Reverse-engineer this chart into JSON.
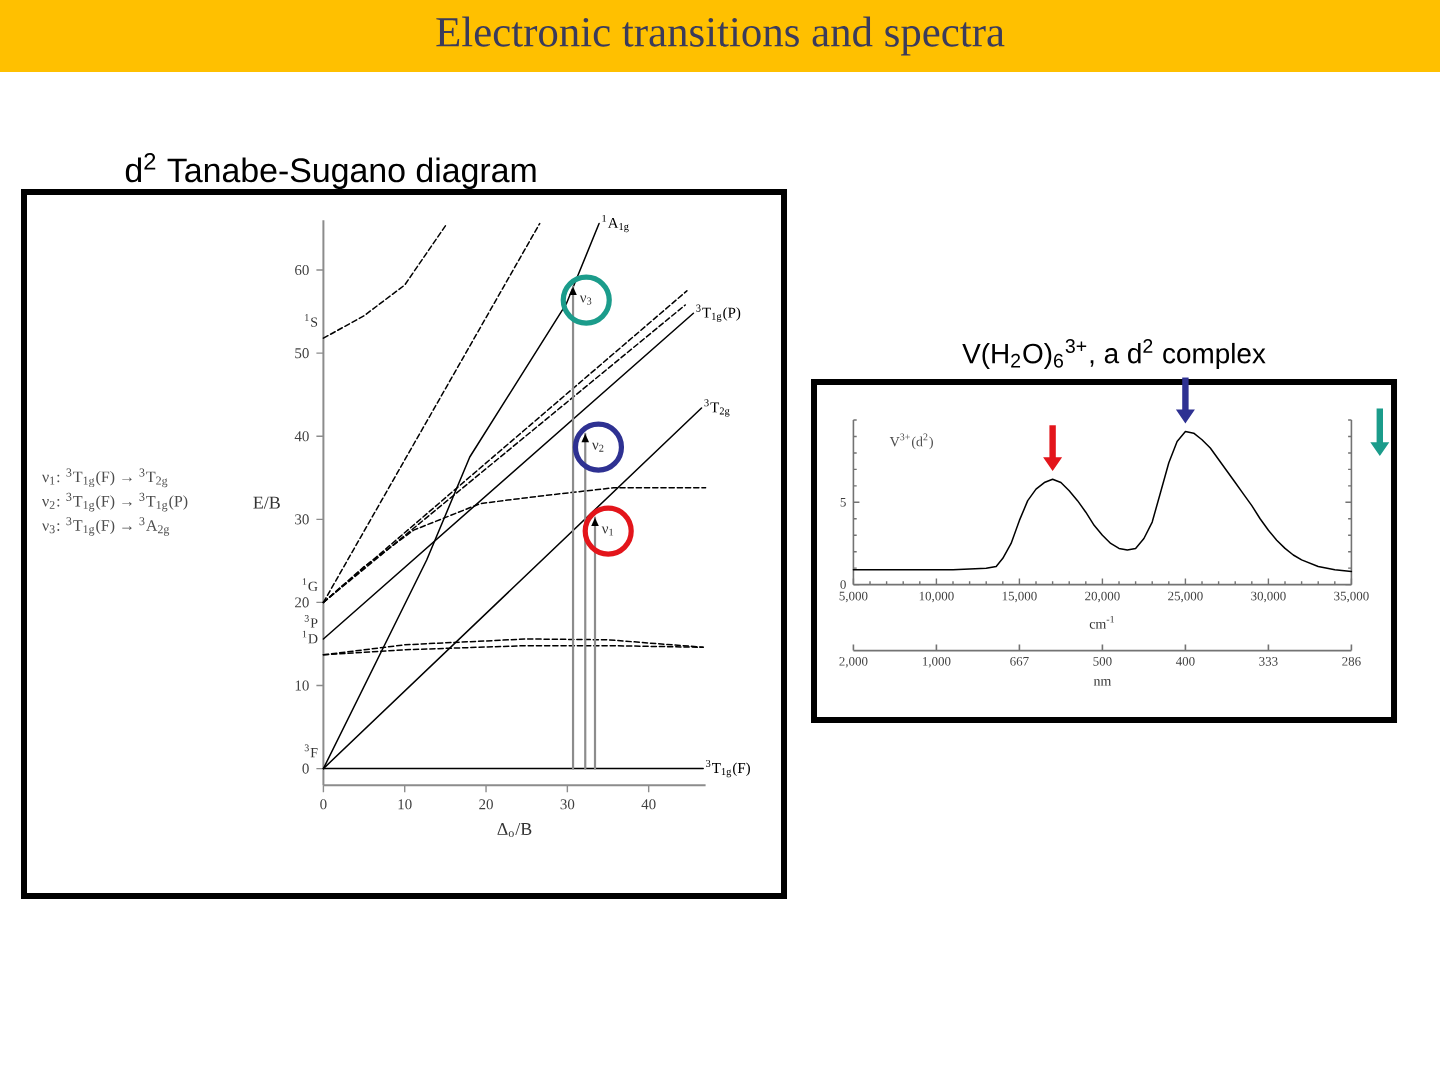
{
  "chart_data": [
    {
      "type": "line",
      "title": "Electronic transitions and spectra",
      "subtitle": "d$^{2}$ Tanabe-Sugano diagram",
      "xlabel": "Δ$_{o}$/B",
      "ylabel": "E/B",
      "xlim": [
        0,
        47
      ],
      "ylim": [
        -2,
        66
      ],
      "xticks": [
        0,
        10,
        20,
        30,
        40
      ],
      "yticks": [
        0,
        10,
        20,
        30,
        40,
        50,
        60
      ],
      "series": [
        {
          "name": "$^{3}$T$_{1g}$(F)",
          "color": "#000000",
          "line_style": "solid",
          "x": [
            0,
            46.7
          ],
          "values": [
            0,
            0
          ]
        },
        {
          "name": "$^{3}$T$_{2g}$",
          "color": "#000000",
          "line_style": "solid",
          "x": [
            0,
            46.5
          ],
          "values": [
            0,
            43.4
          ]
        },
        {
          "name": "$^{3}$T$_{1g}$(P)",
          "color": "#000000",
          "line_style": "solid",
          "x": [
            0,
            45.5
          ],
          "values": [
            15.6,
            54.8
          ]
        },
        {
          "name": "$^{1}$A$_{1g}$",
          "color": "#000000",
          "line_style": "solid",
          "x": [
            0,
            12.7,
            18,
            29.9,
            33.9
          ],
          "values": [
            0,
            25.1,
            37.5,
            56,
            65.6
          ]
        },
        {
          "color": "#000000",
          "line_style": "dashed",
          "x": [
            0,
            5,
            10,
            15.2
          ],
          "values": [
            51.8,
            54.5,
            58.2,
            65.6
          ]
        },
        {
          "color": "#000000",
          "line_style": "dashed",
          "x": [
            0,
            26.6
          ],
          "values": [
            20,
            65.6
          ]
        },
        {
          "color": "#000000",
          "line_style": "dashed",
          "x": [
            0,
            44.7
          ],
          "values": [
            20,
            57.5
          ]
        },
        {
          "color": "#000000",
          "line_style": "dashed",
          "x": [
            0,
            44.5
          ],
          "values": [
            20,
            55.8
          ]
        },
        {
          "color": "#000000",
          "line_style": "dashed",
          "x": [
            0,
            5,
            11.1,
            19.3,
            27.5,
            35.7,
            47
          ],
          "values": [
            20,
            24.3,
            28.7,
            31.9,
            32.9,
            33.8,
            33.8
          ]
        },
        {
          "color": "#000000",
          "line_style": "dashed",
          "x": [
            0,
            10,
            25,
            35,
            46.7
          ],
          "values": [
            13.7,
            14.9,
            15.6,
            15.5,
            14.6
          ]
        },
        {
          "color": "#000000",
          "line_style": "dashed",
          "x": [
            0,
            10,
            25,
            35,
            46.7
          ],
          "values": [
            13.7,
            14.3,
            14.8,
            14.8,
            14.6
          ]
        },
        {
          "color": "#8c8c8c",
          "line_style": "solid",
          "x": [
            30.7,
            30.7
          ],
          "values": [
            0,
            58
          ]
        },
        {
          "color": "#8c8c8c",
          "line_style": "solid",
          "x": [
            32.2,
            32.2
          ],
          "values": [
            0,
            40.3
          ]
        },
        {
          "color": "#8c8c8c",
          "line_style": "solid",
          "x": [
            33.4,
            33.4
          ],
          "values": [
            0,
            30.2
          ]
        }
      ],
      "annotations": [
        {
          "text": "$^{1}$S",
          "x": 0,
          "y": 51.8
        },
        {
          "text": "$^{1}$G",
          "x": 0,
          "y": 20
        },
        {
          "text": "$^{3}$P",
          "x": 0,
          "y": 15.6
        },
        {
          "text": "$^{1}$D",
          "x": 0,
          "y": 13.7
        },
        {
          "text": "$^{3}$F",
          "x": 0,
          "y": 0
        },
        {
          "text": "ν$_{1}$",
          "x": 33.4,
          "y": 30.2
        },
        {
          "text": "ν$_{2}$",
          "x": 32.2,
          "y": 40.3
        },
        {
          "text": "ν$_{3}$",
          "x": 30.7,
          "y": 58
        },
        "ν$_{1}$: $^{3}$T$_{1g}$(F) → $^{3}$T$_{2g}$",
        "ν$_{2}$: $^{3}$T$_{1g}$(F) → $^{3}$T$_{1g}$(P)",
        "ν$_{3}$: $^{3}$T$_{1g}$(F) → $^{3}$A$_{2g}$"
      ]
    },
    {
      "type": "line",
      "title": "V(H$_{2}$O)$_{6}$$^{3+}$, a d$^{2}$ complex",
      "xlabel": "cm$^{-1}$",
      "xlim": [
        5000,
        35000
      ],
      "ylim": [
        0,
        10
      ],
      "xticks": [
        {
          "value": 5000,
          "label": "5,000"
        },
        {
          "value": 6000,
          "label": null
        },
        {
          "value": 7000,
          "label": null
        },
        {
          "value": 8000,
          "label": null
        },
        {
          "value": 9000,
          "label": null
        },
        {
          "value": 10000,
          "label": "10,000"
        },
        {
          "value": 11000,
          "label": null
        },
        {
          "value": 12000,
          "label": null
        },
        {
          "value": 13000,
          "label": null
        },
        {
          "value": 14000,
          "label": null
        },
        {
          "value": 15000,
          "label": "15,000"
        },
        {
          "value": 16000,
          "label": null
        },
        {
          "value": 17000,
          "label": null
        },
        {
          "value": 18000,
          "label": null
        },
        {
          "value": 19000,
          "label": null
        },
        {
          "value": 20000,
          "label": "20,000"
        },
        {
          "value": 21000,
          "label": null
        },
        {
          "value": 22000,
          "label": null
        },
        {
          "value": 23000,
          "label": null
        },
        {
          "value": 24000,
          "label": null
        },
        {
          "value": 25000,
          "label": "25,000"
        },
        {
          "value": 26000,
          "label": null
        },
        {
          "value": 27000,
          "label": null
        },
        {
          "value": 28000,
          "label": null
        },
        {
          "value": 29000,
          "label": null
        },
        {
          "value": 30000,
          "label": "30,000"
        },
        {
          "value": 31000,
          "label": null
        },
        {
          "value": 32000,
          "label": null
        },
        {
          "value": 33000,
          "label": null
        },
        {
          "value": 34000,
          "label": null
        },
        {
          "value": 35000,
          "label": "35,000"
        }
      ],
      "yticks": [
        0,
        {
          "value": 1,
          "label": null
        },
        {
          "value": 2,
          "label": null
        },
        {
          "value": 3,
          "label": null
        },
        {
          "value": 4,
          "label": null
        },
        5,
        {
          "value": 6,
          "label": null
        },
        {
          "value": 7,
          "label": null
        },
        {
          "value": 8,
          "label": null
        },
        {
          "value": 9,
          "label": null
        },
        {
          "value": 10,
          "label": null
        }
      ],
      "series": [
        {
          "color": "#000000",
          "x": [
            5000,
            8000,
            11000,
            13000,
            13600,
            14000,
            14500,
            15000,
            15500,
            16000,
            16500,
            17000,
            17500,
            18000,
            18500,
            19000,
            19500,
            20000,
            20500,
            21000,
            21500,
            22000,
            22500,
            23000,
            23500,
            24000,
            24500,
            25000,
            25500,
            26000,
            26500,
            27000,
            27500,
            28000,
            28500,
            29000,
            29500,
            30000,
            30500,
            31000,
            31500,
            32000,
            33000,
            34000,
            35000
          ],
          "values": [
            0.9,
            0.9,
            0.9,
            1.0,
            1.1,
            1.6,
            2.5,
            3.9,
            5.1,
            5.8,
            6.2,
            6.4,
            6.2,
            5.7,
            5.1,
            4.4,
            3.6,
            3.0,
            2.5,
            2.2,
            2.1,
            2.2,
            2.8,
            3.8,
            5.6,
            7.4,
            8.7,
            9.3,
            9.2,
            8.8,
            8.3,
            7.6,
            6.9,
            6.2,
            5.5,
            4.8,
            4.0,
            3.3,
            2.7,
            2.2,
            1.8,
            1.5,
            1.1,
            0.9,
            0.8
          ]
        }
      ],
      "annotations": [
        "V$^{3+}$(d$^{2}$)",
        "2,000",
        "1,000",
        "667",
        "500",
        "400",
        "333",
        "286",
        "nm"
      ]
    }
  ]
}
